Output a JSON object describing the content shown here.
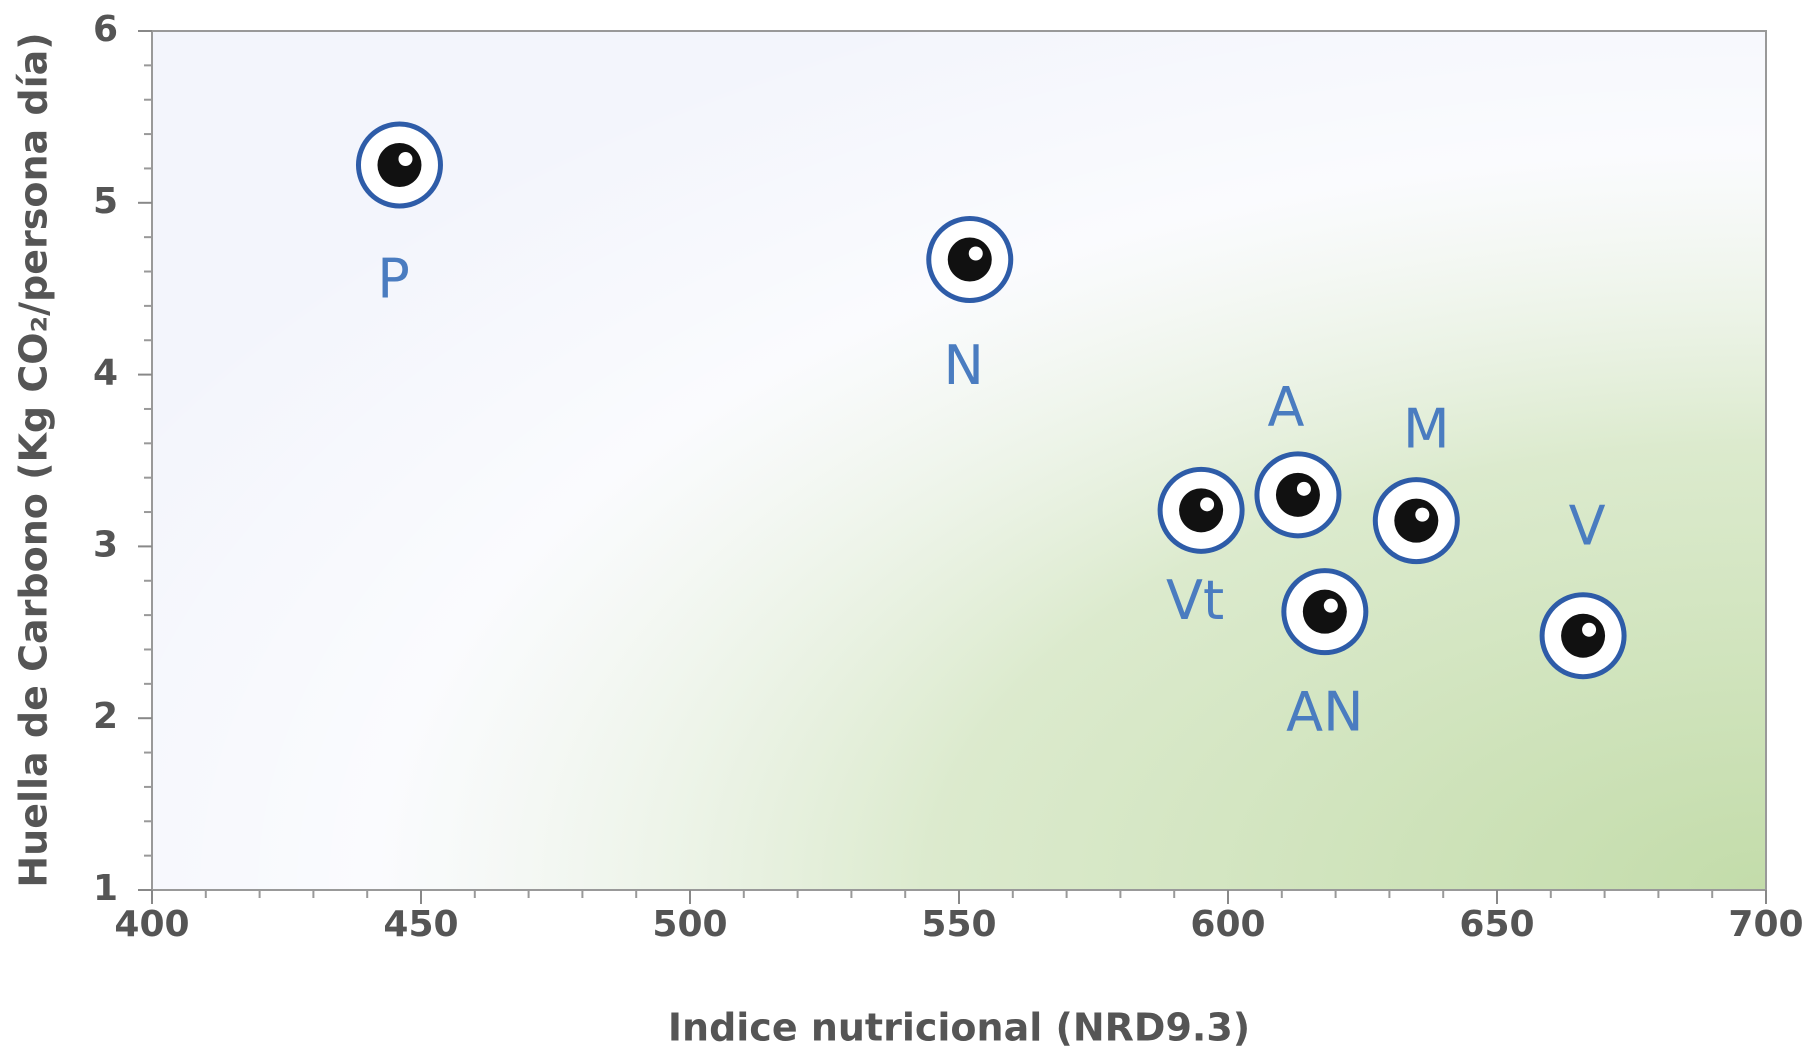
{
  "chart_data": {
    "type": "scatter",
    "x_label": "Indice nutricional (NRD9.3)",
    "y_label": "Huella de Carbono (Kg CO₂/persona día)",
    "labels": [
      "P",
      "N",
      "Vt",
      "A",
      "M",
      "AN",
      "V"
    ],
    "x": [
      446,
      552,
      595,
      613,
      635,
      618,
      666
    ],
    "values": [
      5.22,
      4.67,
      3.21,
      3.3,
      3.15,
      2.62,
      2.48
    ],
    "color": "#2e5ca8",
    "label_color": "#4a7cc0",
    "xlim": [
      400,
      700
    ],
    "xticks": [
      400,
      450,
      500,
      550,
      600,
      650,
      700
    ],
    "ylim": [
      1,
      6
    ],
    "yticks": [
      1,
      2,
      3,
      4,
      5,
      6
    ]
  }
}
